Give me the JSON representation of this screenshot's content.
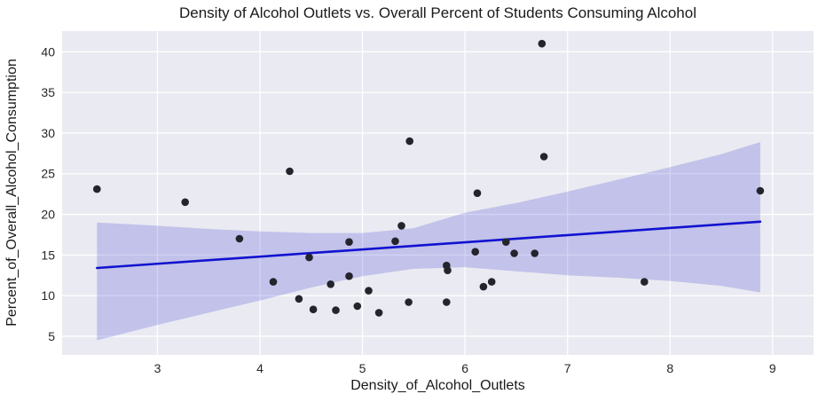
{
  "figure": {
    "title": "Density of Alcohol Outlets vs. Overall Percent of Students Consuming Alcohol",
    "xlabel": "Density_of_Alcohol_Outlets",
    "ylabel": "Percent_of_Overall_Alcohol_Consumption"
  },
  "chart_data": {
    "type": "scatter",
    "title": "Density of Alcohol Outlets vs. Overall Percent of Students Consuming Alcohol",
    "xlabel": "Density_of_Alcohol_Outlets",
    "ylabel": "Percent_of_Overall_Alcohol_Consumption",
    "x_ticks": [
      3,
      4,
      5,
      6,
      7,
      8,
      9
    ],
    "y_ticks": [
      5,
      10,
      15,
      20,
      25,
      30,
      35,
      40
    ],
    "xlim": [
      2.07,
      9.4
    ],
    "ylim": [
      2.7,
      42.55
    ],
    "grid": true,
    "legend": "none",
    "points": [
      [
        2.41,
        23.1
      ],
      [
        3.27,
        21.5
      ],
      [
        3.8,
        17.0
      ],
      [
        4.13,
        11.7
      ],
      [
        4.29,
        25.3
      ],
      [
        4.38,
        9.6
      ],
      [
        4.48,
        14.7
      ],
      [
        4.52,
        8.3
      ],
      [
        4.69,
        11.4
      ],
      [
        4.74,
        8.2
      ],
      [
        4.87,
        16.6
      ],
      [
        4.87,
        12.4
      ],
      [
        4.95,
        8.7
      ],
      [
        5.06,
        10.6
      ],
      [
        5.16,
        7.9
      ],
      [
        5.32,
        16.7
      ],
      [
        5.38,
        18.6
      ],
      [
        5.45,
        9.2
      ],
      [
        5.46,
        29.0
      ],
      [
        5.82,
        13.7
      ],
      [
        5.82,
        9.2
      ],
      [
        5.83,
        13.1
      ],
      [
        6.1,
        15.4
      ],
      [
        6.12,
        22.6
      ],
      [
        6.18,
        11.1
      ],
      [
        6.26,
        11.7
      ],
      [
        6.4,
        16.6
      ],
      [
        6.48,
        15.2
      ],
      [
        6.68,
        15.2
      ],
      [
        6.75,
        41.0
      ],
      [
        6.77,
        27.1
      ],
      [
        7.75,
        11.7
      ],
      [
        8.88,
        22.9
      ]
    ],
    "regression_line": {
      "x": [
        2.41,
        8.88
      ],
      "y": [
        13.4,
        19.1
      ]
    },
    "confidence_band": [
      [
        2.41,
        4.5,
        19.0
      ],
      [
        3.0,
        6.4,
        18.6
      ],
      [
        3.5,
        7.9,
        18.2
      ],
      [
        4.0,
        9.4,
        17.9
      ],
      [
        4.5,
        11.0,
        17.7
      ],
      [
        5.0,
        12.4,
        17.7
      ],
      [
        5.5,
        13.3,
        18.3
      ],
      [
        6.0,
        13.5,
        20.2
      ],
      [
        6.5,
        13.0,
        21.4
      ],
      [
        7.0,
        12.5,
        22.8
      ],
      [
        7.5,
        12.2,
        24.3
      ],
      [
        8.0,
        11.8,
        25.8
      ],
      [
        8.5,
        11.2,
        27.4
      ],
      [
        8.88,
        10.4,
        28.9
      ]
    ],
    "colors": {
      "figure_bg": "#ffffff",
      "plot_bg": "#eaeaf2",
      "grid": "#ffffff",
      "band_fill": "#2222cc",
      "band_opacity": 0.2,
      "line": "#1212d0",
      "point": "#24242c",
      "tick_text": "#262626"
    }
  }
}
